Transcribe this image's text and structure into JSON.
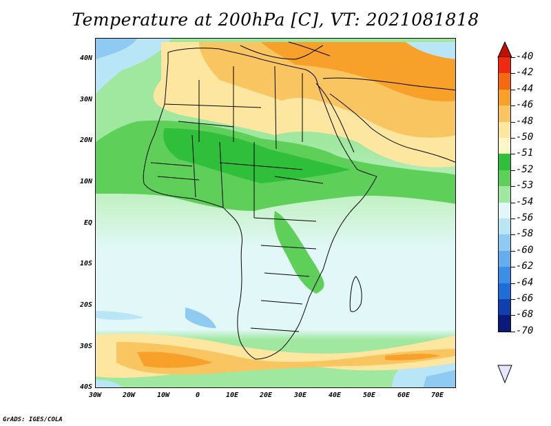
{
  "title": "Temperature at 200hPa [C], VT: 2021081818",
  "credit": "GrADS: IGES/COLA",
  "map": {
    "lat_labels": [
      "40N",
      "30N",
      "20N",
      "10N",
      "EQ",
      "10S",
      "20S",
      "30S",
      "40S"
    ],
    "lon_labels": [
      "30W",
      "20W",
      "10W",
      "0",
      "10E",
      "20E",
      "30E",
      "40E",
      "50E",
      "60E",
      "70E"
    ],
    "region": "Africa",
    "lon_range": [
      -30,
      75
    ],
    "lat_range": [
      -40,
      45
    ]
  },
  "colorbar": {
    "labels": [
      "-40",
      "-42",
      "-44",
      "-46",
      "-48",
      "-50",
      "-51",
      "-52",
      "-53",
      "-54",
      "-56",
      "-58",
      "-60",
      "-62",
      "-64",
      "-66",
      "-68",
      "-70"
    ],
    "colors": [
      "#c01000",
      "#ee2a10",
      "#f36a10",
      "#f7a12a",
      "#f9c560",
      "#fde7a0",
      "#fdf6c6",
      "#2fbf3a",
      "#5ed05a",
      "#a0e8a0",
      "#e2f8f8",
      "#b8e6f6",
      "#8fcaf2",
      "#64aeee",
      "#3c8ee6",
      "#1f6ed8",
      "#1040b0",
      "#0a1a7a",
      "#e6e6ff"
    ]
  }
}
